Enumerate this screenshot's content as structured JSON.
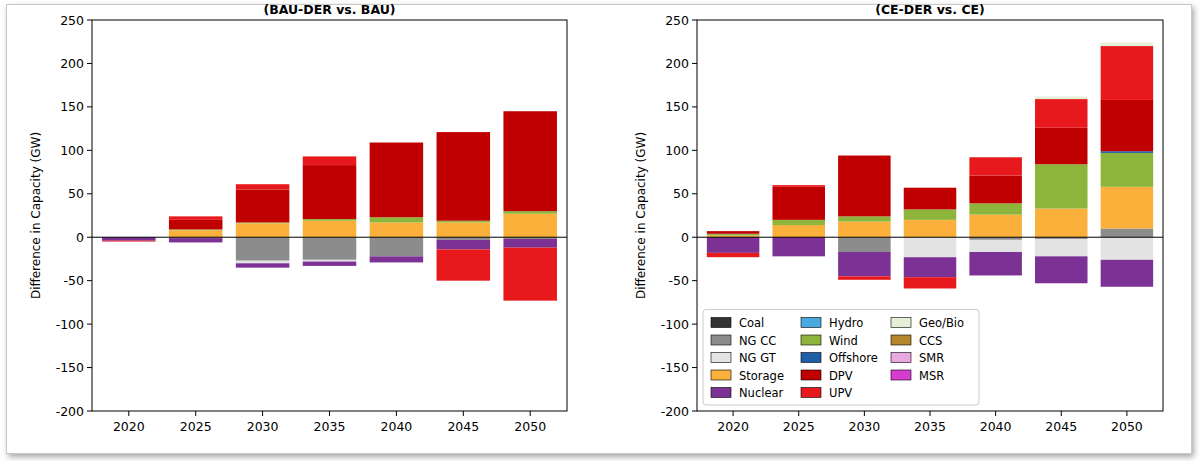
{
  "chart_data": [
    {
      "type": "bar",
      "title": "(BAU-DER vs. BAU)",
      "y_label": "Difference in Capacity (GW)",
      "stacked": true,
      "categories": [
        "2020",
        "2025",
        "2030",
        "2035",
        "2040",
        "2045",
        "2050"
      ],
      "ylim": [
        -200,
        250
      ],
      "yticks": [
        -200,
        -150,
        -100,
        -50,
        0,
        50,
        100,
        150,
        200,
        250
      ],
      "series": [
        {
          "name": "Coal",
          "color": "#333333",
          "values": [
            0,
            0,
            0,
            0,
            0,
            0,
            0
          ]
        },
        {
          "name": "NG CC",
          "color": "#8c8c8c",
          "values": [
            0,
            -1,
            -27,
            -26,
            -22,
            -3,
            -2
          ]
        },
        {
          "name": "NG GT",
          "color": "#e3e3e3",
          "values": [
            0,
            0,
            -3,
            -2,
            0,
            0,
            0
          ]
        },
        {
          "name": "Storage",
          "color": "#fbb03b",
          "values": [
            0,
            8,
            16,
            19,
            17,
            17,
            27
          ]
        },
        {
          "name": "Nuclear",
          "color": "#7b3294",
          "values": [
            -4,
            -5,
            -5,
            -5,
            -7,
            -11,
            -10
          ]
        },
        {
          "name": "Hydro",
          "color": "#4aa8e0",
          "values": [
            0,
            0,
            0,
            0,
            0,
            0,
            0
          ]
        },
        {
          "name": "Wind",
          "color": "#8db53c",
          "values": [
            0,
            1,
            1,
            2,
            6,
            2,
            3
          ]
        },
        {
          "name": "Offshore",
          "color": "#1f5fa8",
          "values": [
            0,
            0,
            0,
            0,
            0,
            0,
            0
          ]
        },
        {
          "name": "DPV",
          "color": "#c00000",
          "values": [
            0,
            11,
            38,
            62,
            86,
            102,
            115
          ]
        },
        {
          "name": "UPV",
          "color": "#e8191c",
          "values": [
            -1,
            4,
            6,
            10,
            0,
            -36,
            -61
          ]
        },
        {
          "name": "Geo/Bio",
          "color": "#e5efd8",
          "values": [
            0,
            0,
            0,
            0,
            0,
            0,
            0
          ]
        },
        {
          "name": "CCS",
          "color": "#b5852a",
          "values": [
            0,
            0,
            0,
            0,
            0,
            0,
            0
          ]
        },
        {
          "name": "SMR",
          "color": "#e8a8e0",
          "values": [
            0,
            0,
            0,
            0,
            0,
            0,
            0
          ]
        },
        {
          "name": "MSR",
          "color": "#d63cd0",
          "values": [
            0,
            0,
            0,
            0,
            0,
            0,
            0
          ]
        }
      ]
    },
    {
      "type": "bar",
      "title": "(CE-DER vs. CE)",
      "y_label": "Difference in Capacity (GW)",
      "stacked": true,
      "legend": "lower left",
      "categories": [
        "2020",
        "2025",
        "2030",
        "2035",
        "2040",
        "2045",
        "2050"
      ],
      "ylim": [
        -200,
        250
      ],
      "yticks": [
        -200,
        -150,
        -100,
        -50,
        0,
        50,
        100,
        150,
        200,
        250
      ],
      "series": [
        {
          "name": "Coal",
          "color": "#333333",
          "values": [
            0,
            0,
            0,
            0,
            0,
            0,
            0
          ]
        },
        {
          "name": "NG CC",
          "color": "#8c8c8c",
          "values": [
            0,
            0,
            -17,
            0,
            -3,
            -2,
            10
          ]
        },
        {
          "name": "NG GT",
          "color": "#e3e3e3",
          "values": [
            0,
            0,
            0,
            -23,
            -14,
            -20,
            -26
          ]
        },
        {
          "name": "Storage",
          "color": "#fbb03b",
          "values": [
            2,
            14,
            18,
            20,
            26,
            33,
            48
          ]
        },
        {
          "name": "Nuclear",
          "color": "#7b3294",
          "values": [
            -18,
            -22,
            -28,
            -23,
            -27,
            -31,
            -31
          ]
        },
        {
          "name": "Hydro",
          "color": "#4aa8e0",
          "values": [
            0,
            0,
            0,
            0,
            0,
            0,
            0
          ]
        },
        {
          "name": "Wind",
          "color": "#8db53c",
          "values": [
            2,
            6,
            6,
            12,
            13,
            51,
            39
          ]
        },
        {
          "name": "Offshore",
          "color": "#1f5fa8",
          "values": [
            0,
            0,
            0,
            0,
            0,
            0,
            2
          ]
        },
        {
          "name": "DPV",
          "color": "#c00000",
          "values": [
            3,
            38,
            70,
            25,
            32,
            42,
            59
          ]
        },
        {
          "name": "UPV",
          "color": "#e8191c",
          "values": [
            -5,
            2,
            -4,
            -13,
            21,
            33,
            62
          ]
        },
        {
          "name": "Geo/Bio",
          "color": "#e5efd8",
          "values": [
            0,
            0,
            0,
            0,
            0,
            3,
            4
          ]
        },
        {
          "name": "CCS",
          "color": "#b5852a",
          "values": [
            0,
            0,
            0,
            0,
            0,
            0,
            0
          ]
        },
        {
          "name": "SMR",
          "color": "#e8a8e0",
          "values": [
            0,
            0,
            0,
            0,
            0,
            0,
            0
          ]
        },
        {
          "name": "MSR",
          "color": "#d63cd0",
          "values": [
            0,
            0,
            0,
            0,
            0,
            0,
            0
          ]
        }
      ]
    }
  ]
}
